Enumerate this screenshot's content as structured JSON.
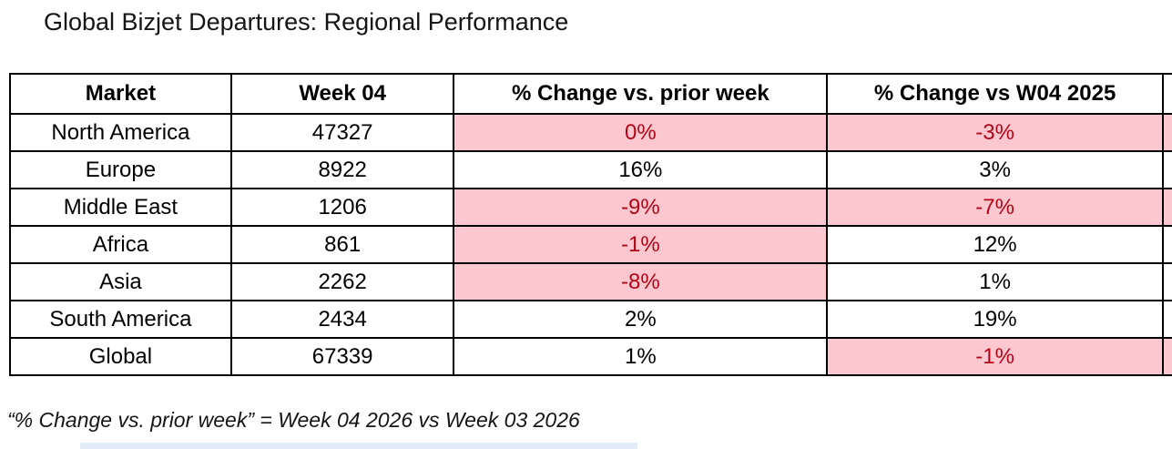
{
  "title": "Global Bizjet Departures: Regional Performance",
  "footnote": "“% Change vs. prior week” = Week 04 2026 vs Week 03 2026",
  "chart_data": {
    "type": "table",
    "title": "Global Bizjet Departures: Regional Performance",
    "columns": [
      "Market",
      "Week 04",
      "% Change vs. prior week",
      "% Change vs W04 2025"
    ],
    "rows": [
      [
        "North America",
        "47327",
        "0%",
        "-3%"
      ],
      [
        "Europe",
        "8922",
        "16%",
        "3%"
      ],
      [
        "Middle East",
        "1206",
        "-9%",
        "-7%"
      ],
      [
        "Africa",
        "861",
        "-1%",
        "12%"
      ],
      [
        "Asia",
        "2262",
        "-8%",
        "1%"
      ],
      [
        "South America",
        "2434",
        "2%",
        "19%"
      ],
      [
        "Global",
        "67339",
        "1%",
        "-1%"
      ]
    ],
    "highlighted_cells": {
      "style": "light red fill with dark red text",
      "row_col_indexes": [
        [
          0,
          2
        ],
        [
          0,
          3
        ],
        [
          2,
          2
        ],
        [
          2,
          3
        ],
        [
          3,
          2
        ],
        [
          4,
          2
        ],
        [
          6,
          3
        ]
      ]
    },
    "footnote": "“% Change vs. prior week” = Week 04 2026 vs Week 03 2026"
  },
  "colors": {
    "negative_fill": "#FCC7CE",
    "negative_text": "#B30518",
    "table_border": "#000000",
    "bottom_bar": "#E2ECF8"
  }
}
